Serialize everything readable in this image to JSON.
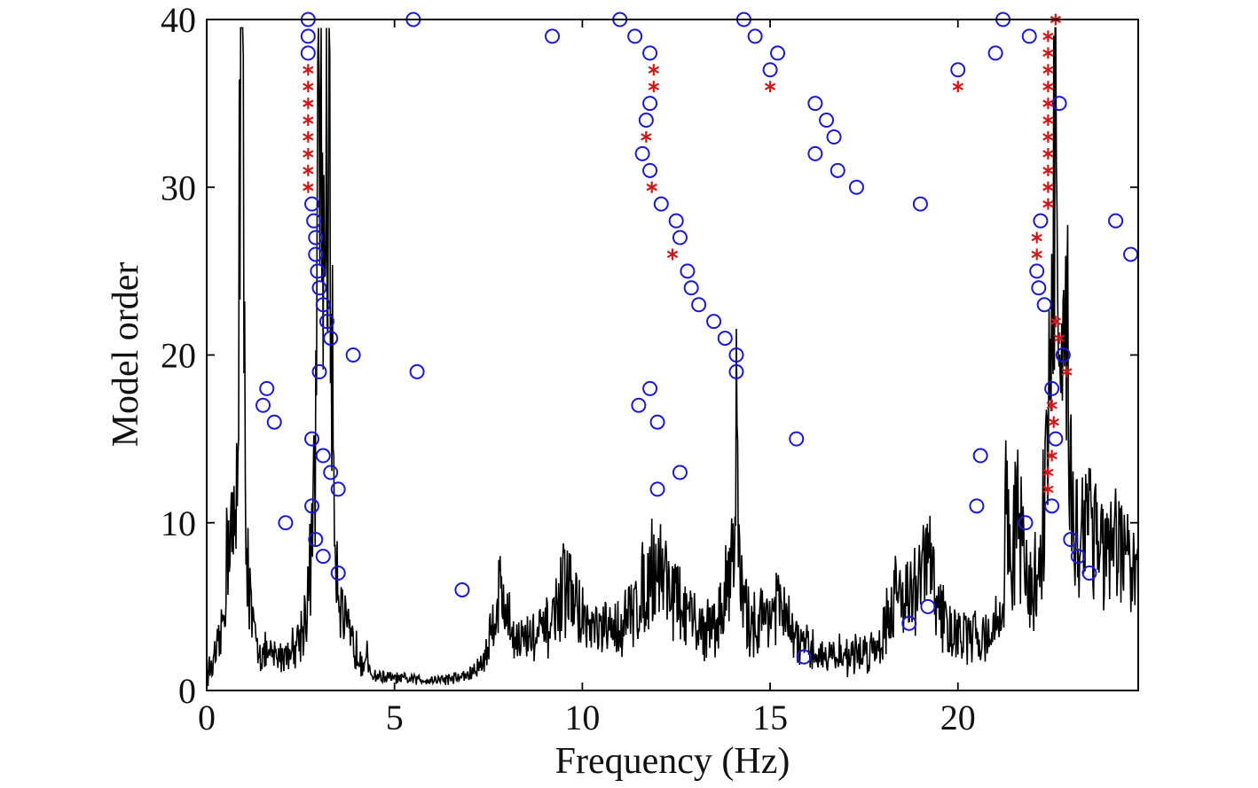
{
  "chart_data": {
    "type": "scatter",
    "title": "",
    "xlabel": "Frequency (Hz)",
    "ylabel": "Model order",
    "xlim": [
      0,
      24.8
    ],
    "ylim": [
      0,
      40
    ],
    "xticks": [
      0,
      5,
      10,
      15,
      20
    ],
    "yticks": [
      0,
      10,
      20,
      30,
      40
    ],
    "grid": false,
    "legend": "none",
    "colors": {
      "unstable": "#1a1acc",
      "stable": "#cc1a1a",
      "spectrum": "#000000",
      "axes": "#000000"
    },
    "series": [
      {
        "marker": "circle",
        "points": [
          [
            2.7,
            40
          ],
          [
            2.7,
            39
          ],
          [
            2.7,
            38
          ],
          [
            2.8,
            29
          ],
          [
            2.85,
            28
          ],
          [
            2.9,
            27
          ],
          [
            2.9,
            26
          ],
          [
            2.95,
            25
          ],
          [
            3.0,
            24
          ],
          [
            3.1,
            23
          ],
          [
            3.2,
            22
          ],
          [
            3.3,
            21
          ],
          [
            3.9,
            20
          ],
          [
            3.0,
            19
          ],
          [
            1.6,
            18
          ],
          [
            1.5,
            17
          ],
          [
            1.8,
            16
          ],
          [
            2.8,
            15
          ],
          [
            3.1,
            14
          ],
          [
            3.3,
            13
          ],
          [
            3.5,
            12
          ],
          [
            2.8,
            11
          ],
          [
            2.1,
            10
          ],
          [
            2.9,
            9
          ],
          [
            3.1,
            8
          ],
          [
            3.5,
            7
          ],
          [
            5.5,
            40
          ],
          [
            9.2,
            39
          ],
          [
            5.6,
            19
          ],
          [
            6.8,
            6
          ],
          [
            11.0,
            40
          ],
          [
            11.4,
            39
          ],
          [
            11.8,
            38
          ],
          [
            11.8,
            35
          ],
          [
            11.7,
            34
          ],
          [
            11.6,
            32
          ],
          [
            11.8,
            31
          ],
          [
            12.1,
            29
          ],
          [
            12.5,
            28
          ],
          [
            12.6,
            27
          ],
          [
            12.8,
            25
          ],
          [
            12.9,
            24
          ],
          [
            13.1,
            23
          ],
          [
            13.5,
            22
          ],
          [
            13.8,
            21
          ],
          [
            14.1,
            20
          ],
          [
            14.1,
            19
          ],
          [
            11.8,
            18
          ],
          [
            11.5,
            17
          ],
          [
            12.0,
            16
          ],
          [
            12.6,
            13
          ],
          [
            12.0,
            12
          ],
          [
            14.3,
            40
          ],
          [
            14.6,
            39
          ],
          [
            15.2,
            38
          ],
          [
            15.0,
            37
          ],
          [
            16.2,
            35
          ],
          [
            16.5,
            34
          ],
          [
            16.7,
            33
          ],
          [
            16.2,
            32
          ],
          [
            16.8,
            31
          ],
          [
            17.3,
            30
          ],
          [
            15.7,
            15
          ],
          [
            15.9,
            2
          ],
          [
            18.7,
            4
          ],
          [
            19.2,
            5
          ],
          [
            19.0,
            29
          ],
          [
            20.0,
            37
          ],
          [
            20.6,
            14
          ],
          [
            20.5,
            11
          ],
          [
            21.0,
            38
          ],
          [
            21.2,
            40
          ],
          [
            21.9,
            39
          ],
          [
            22.2,
            28
          ],
          [
            22.1,
            25
          ],
          [
            22.15,
            24
          ],
          [
            22.3,
            23
          ],
          [
            22.5,
            18
          ],
          [
            22.6,
            15
          ],
          [
            22.5,
            11
          ],
          [
            21.8,
            10
          ],
          [
            22.8,
            20
          ],
          [
            22.7,
            35
          ],
          [
            23.0,
            9
          ],
          [
            23.2,
            8
          ],
          [
            23.5,
            7
          ],
          [
            24.2,
            28
          ],
          [
            24.6,
            26
          ]
        ]
      },
      {
        "marker": "star",
        "points": [
          [
            2.7,
            37
          ],
          [
            2.7,
            36
          ],
          [
            2.7,
            35
          ],
          [
            2.7,
            34
          ],
          [
            2.7,
            33
          ],
          [
            2.7,
            32
          ],
          [
            2.7,
            31
          ],
          [
            2.7,
            30
          ],
          [
            11.9,
            37
          ],
          [
            11.9,
            36
          ],
          [
            11.7,
            33
          ],
          [
            11.85,
            30
          ],
          [
            12.4,
            26
          ],
          [
            15.0,
            36
          ],
          [
            20.0,
            36
          ],
          [
            22.6,
            40
          ],
          [
            22.4,
            39
          ],
          [
            22.4,
            38
          ],
          [
            22.4,
            37
          ],
          [
            22.4,
            36
          ],
          [
            22.4,
            35
          ],
          [
            22.4,
            34
          ],
          [
            22.4,
            33
          ],
          [
            22.4,
            32
          ],
          [
            22.4,
            31
          ],
          [
            22.4,
            30
          ],
          [
            22.4,
            29
          ],
          [
            22.1,
            27
          ],
          [
            22.1,
            26
          ],
          [
            22.6,
            22
          ],
          [
            22.7,
            21
          ],
          [
            22.9,
            19
          ],
          [
            22.5,
            17
          ],
          [
            22.55,
            16
          ],
          [
            22.5,
            14
          ],
          [
            22.4,
            13
          ],
          [
            22.4,
            12
          ]
        ]
      }
    ],
    "spectrum_peaks": [
      [
        0.9,
        30.0,
        0.04
      ],
      [
        0.95,
        20.0,
        0.08
      ],
      [
        0.6,
        7.5,
        0.12
      ],
      [
        3.1,
        16.0,
        0.2
      ],
      [
        3.25,
        23.0,
        0.08
      ],
      [
        3.0,
        20.0,
        0.06
      ],
      [
        7.8,
        4.5,
        0.25
      ],
      [
        9.6,
        3.5,
        0.35
      ],
      [
        12.0,
        5.0,
        0.6
      ],
      [
        14.1,
        8.5,
        0.04
      ],
      [
        14.0,
        5.0,
        0.2
      ],
      [
        15.2,
        3.0,
        0.4
      ],
      [
        18.5,
        3.0,
        0.4
      ],
      [
        19.2,
        4.5,
        0.25
      ],
      [
        21.3,
        10.0,
        0.04
      ],
      [
        21.6,
        7.0,
        0.15
      ],
      [
        22.5,
        14.0,
        0.2
      ],
      [
        22.6,
        20.0,
        0.05
      ],
      [
        22.9,
        12.0,
        0.12
      ],
      [
        23.5,
        6.5,
        0.3
      ],
      [
        24.4,
        5.0,
        0.5
      ]
    ]
  }
}
